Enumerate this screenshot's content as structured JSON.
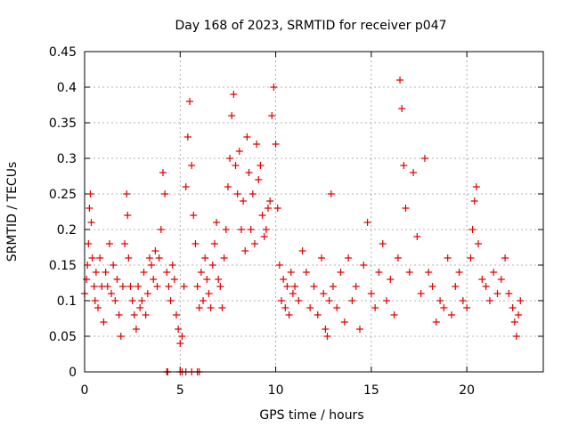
{
  "chart_data": {
    "type": "scatter",
    "title": "Day 168 of 2023, SRMTID for receiver p047",
    "xlabel": "GPS time / hours",
    "ylabel": "SRMTID / TECUs",
    "xlim": [
      0,
      24
    ],
    "ylim": [
      0,
      0.45
    ],
    "x_ticks": [
      0,
      5,
      10,
      15,
      20
    ],
    "x_tick_labels": [
      "0",
      "5",
      "10",
      "15",
      "20"
    ],
    "y_ticks": [
      0,
      0.05,
      0.1,
      0.15,
      0.2,
      0.25,
      0.3,
      0.35,
      0.4,
      0.45
    ],
    "y_tick_labels": [
      "0",
      "0.05",
      "0.1",
      "0.15",
      "0.2",
      "0.25",
      "0.3",
      "0.35",
      "0.4",
      "0.45"
    ],
    "grid": true,
    "marker": "+",
    "series": [
      {
        "name": "SRMTID",
        "color": "#e00000",
        "x": [
          0.0,
          0.1,
          0.15,
          0.2,
          0.25,
          0.3,
          0.35,
          0.4,
          0.5,
          0.55,
          0.6,
          0.7,
          0.8,
          0.9,
          1.0,
          1.1,
          1.2,
          1.3,
          1.4,
          1.5,
          1.6,
          1.7,
          1.8,
          1.9,
          2.0,
          2.1,
          2.2,
          2.25,
          2.3,
          2.4,
          2.5,
          2.6,
          2.7,
          2.8,
          2.9,
          3.0,
          3.1,
          3.2,
          3.3,
          3.4,
          3.5,
          3.6,
          3.7,
          3.8,
          3.9,
          4.0,
          4.1,
          4.2,
          4.3,
          4.4,
          4.5,
          4.6,
          4.7,
          4.8,
          4.9,
          5.0,
          5.1,
          5.2,
          5.3,
          5.4,
          5.5,
          5.6,
          5.7,
          5.8,
          5.9,
          6.0,
          6.1,
          6.2,
          6.3,
          6.4,
          6.5,
          6.6,
          6.7,
          6.8,
          6.9,
          7.0,
          7.1,
          7.2,
          7.3,
          7.4,
          7.5,
          7.6,
          7.7,
          7.8,
          7.9,
          8.0,
          8.1,
          8.2,
          8.3,
          8.4,
          8.5,
          8.6,
          8.7,
          8.8,
          8.9,
          9.0,
          9.1,
          9.2,
          9.3,
          9.4,
          9.5,
          9.6,
          9.7,
          9.8,
          9.9,
          10.0,
          10.1,
          10.2,
          10.3,
          10.4,
          10.5,
          10.6,
          10.7,
          10.8,
          10.9,
          11.0,
          11.2,
          11.4,
          11.6,
          11.8,
          12.0,
          12.2,
          12.4,
          12.5,
          12.6,
          12.7,
          12.8,
          12.9,
          13.0,
          13.2,
          13.4,
          13.6,
          13.8,
          14.0,
          14.2,
          14.4,
          14.6,
          14.8,
          15.0,
          15.2,
          15.4,
          15.6,
          15.8,
          16.0,
          16.2,
          16.4,
          16.5,
          16.6,
          16.7,
          16.8,
          17.0,
          17.2,
          17.4,
          17.6,
          17.8,
          18.0,
          18.2,
          18.4,
          18.6,
          18.8,
          19.0,
          19.2,
          19.4,
          19.6,
          19.8,
          20.0,
          20.2,
          20.3,
          20.4,
          20.5,
          20.6,
          20.8,
          21.0,
          21.2,
          21.4,
          21.6,
          21.8,
          22.0,
          22.2,
          22.4,
          22.5,
          22.6,
          22.7,
          22.8,
          4.3,
          4.35,
          5.0,
          5.1,
          5.3,
          5.6,
          5.9,
          6.0
        ],
        "y": [
          0.11,
          0.13,
          0.15,
          0.18,
          0.23,
          0.25,
          0.21,
          0.16,
          0.12,
          0.1,
          0.14,
          0.09,
          0.16,
          0.12,
          0.07,
          0.14,
          0.12,
          0.18,
          0.11,
          0.15,
          0.1,
          0.13,
          0.08,
          0.05,
          0.12,
          0.18,
          0.25,
          0.22,
          0.16,
          0.12,
          0.1,
          0.08,
          0.06,
          0.12,
          0.09,
          0.1,
          0.14,
          0.08,
          0.11,
          0.16,
          0.15,
          0.13,
          0.17,
          0.12,
          0.16,
          0.2,
          0.28,
          0.25,
          0.14,
          0.12,
          0.1,
          0.15,
          0.13,
          0.08,
          0.06,
          0.04,
          0.05,
          0.12,
          0.26,
          0.33,
          0.38,
          0.29,
          0.22,
          0.18,
          0.12,
          0.09,
          0.14,
          0.1,
          0.16,
          0.13,
          0.11,
          0.09,
          0.15,
          0.18,
          0.21,
          0.13,
          0.12,
          0.09,
          0.16,
          0.2,
          0.26,
          0.3,
          0.36,
          0.39,
          0.29,
          0.25,
          0.31,
          0.2,
          0.24,
          0.17,
          0.33,
          0.28,
          0.2,
          0.25,
          0.18,
          0.32,
          0.27,
          0.29,
          0.22,
          0.19,
          0.2,
          0.23,
          0.24,
          0.36,
          0.4,
          0.32,
          0.23,
          0.15,
          0.1,
          0.13,
          0.09,
          0.12,
          0.08,
          0.14,
          0.11,
          0.12,
          0.1,
          0.17,
          0.14,
          0.09,
          0.12,
          0.08,
          0.16,
          0.11,
          0.06,
          0.05,
          0.1,
          0.25,
          0.12,
          0.09,
          0.14,
          0.07,
          0.16,
          0.1,
          0.12,
          0.06,
          0.15,
          0.21,
          0.11,
          0.09,
          0.14,
          0.18,
          0.1,
          0.13,
          0.08,
          0.16,
          0.41,
          0.37,
          0.29,
          0.23,
          0.14,
          0.28,
          0.19,
          0.11,
          0.3,
          0.14,
          0.12,
          0.07,
          0.1,
          0.09,
          0.16,
          0.08,
          0.12,
          0.14,
          0.1,
          0.09,
          0.16,
          0.2,
          0.24,
          0.26,
          0.18,
          0.13,
          0.12,
          0.1,
          0.14,
          0.11,
          0.13,
          0.16,
          0.11,
          0.09,
          0.07,
          0.05,
          0.08,
          0.1,
          0,
          0,
          0,
          0,
          0,
          0,
          0,
          0
        ]
      }
    ]
  }
}
